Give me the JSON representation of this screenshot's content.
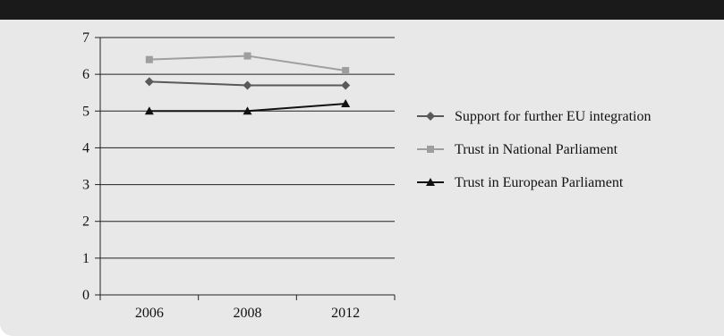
{
  "header": {
    "title": ""
  },
  "chart_data": {
    "type": "line",
    "title": "",
    "xlabel": "",
    "ylabel": "",
    "categories": [
      "2006",
      "2008",
      "2012"
    ],
    "ylim": [
      0,
      7
    ],
    "yticks": [
      "0",
      "1",
      "2",
      "3",
      "4",
      "5",
      "6",
      "7"
    ],
    "grid": true,
    "legend_position": "right",
    "series": [
      {
        "name": "Support for further EU integration",
        "values": [
          5.8,
          5.7,
          5.7
        ],
        "color": "#595959",
        "marker": "diamond"
      },
      {
        "name": "Trust in National Parliament",
        "values": [
          6.4,
          6.5,
          6.1
        ],
        "color": "#9e9e9e",
        "marker": "square"
      },
      {
        "name": "Trust in European Parliament",
        "values": [
          5.0,
          5.0,
          5.2
        ],
        "color": "#111111",
        "marker": "triangle"
      }
    ]
  }
}
